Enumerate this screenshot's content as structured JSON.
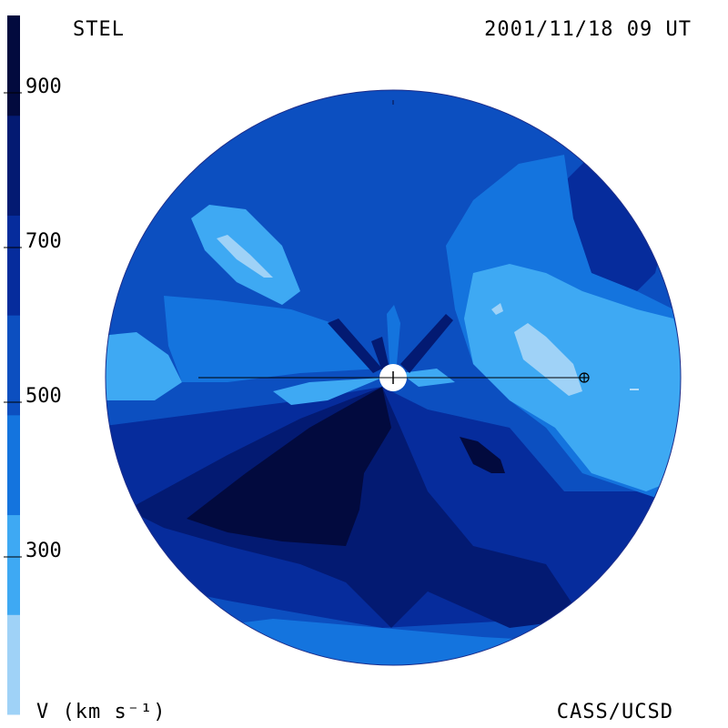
{
  "header": {
    "instrument": "STEL",
    "datetime": "2001/11/18 09 UT"
  },
  "footer": {
    "colorbar_label": "V (km s⁻¹)",
    "credit": "CASS/UCSD"
  },
  "colorbar": {
    "tick_labels": [
      "900",
      "700",
      "500",
      "300"
    ],
    "bands": [
      {
        "color": "#9fd2f7"
      },
      {
        "color": "#3ea9f3"
      },
      {
        "color": "#1474de"
      },
      {
        "color": "#0c4fc0"
      },
      {
        "color": "#062c9c"
      },
      {
        "color": "#031a72"
      },
      {
        "color": "#020a3e"
      }
    ]
  },
  "colors": {
    "palest": "#9fd2f7",
    "light": "#3ea9f3",
    "mid": "#1474de",
    "deep": "#0c4fc0",
    "dark": "#062c9c",
    "darker": "#031a72",
    "darkest": "#020a3e"
  }
}
